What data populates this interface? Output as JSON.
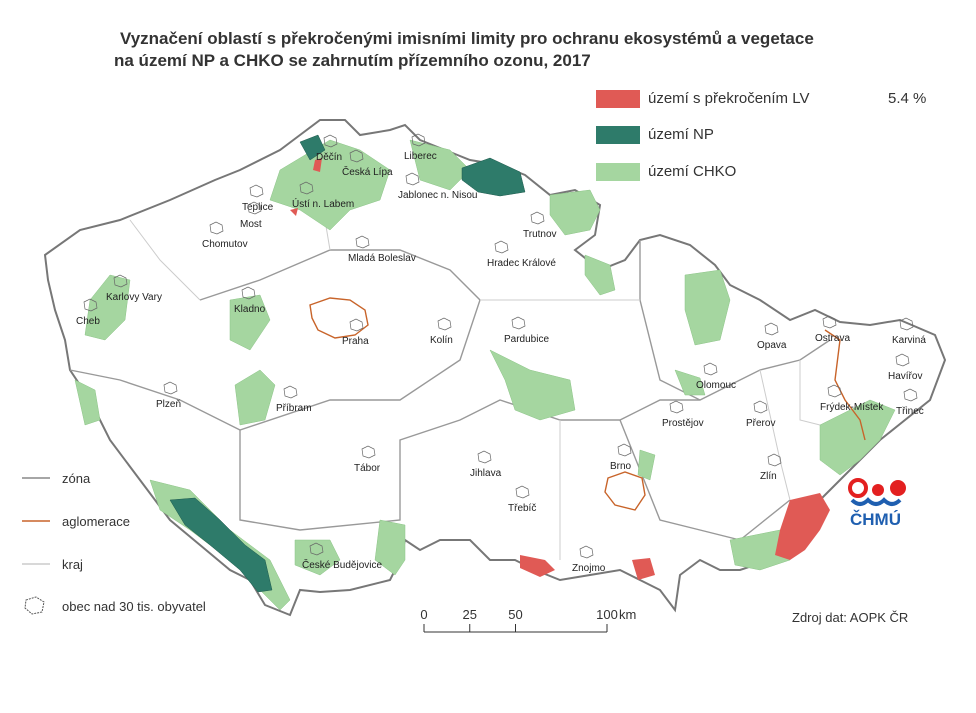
{
  "title": [
    "Vyznačení oblastí s překročenými imisními limity pro ochranu ekosystémů a vegetace",
    "na území NP a CHKO se zahrnutím přízemního ozonu, 2017"
  ],
  "legend": [
    {
      "label": "území s překročením LV",
      "value": "5.4 %"
    },
    {
      "label": "území NP"
    },
    {
      "label": "území CHKO"
    }
  ],
  "boundary_legend": [
    "zóna",
    "aglomerace",
    "kraj",
    "obec nad 30 tis. obyvatel"
  ],
  "cities": [
    "Děčín",
    "Česká Lípa",
    "Liberec",
    "Jablonec n. Nisou",
    "Teplice",
    "Ústí n. Labem",
    "Most",
    "Chomutov",
    "Mladá Boleslav",
    "Trutnov",
    "Hradec Králové",
    "Karlovy Vary",
    "Cheb",
    "Kladno",
    "Praha",
    "Kolín",
    "Pardubice",
    "Opava",
    "Ostrava",
    "Karviná",
    "Havířov",
    "Olomouc",
    "Frýdek-Místek",
    "Třinec",
    "Plzeň",
    "Příbram",
    "Prostějov",
    "Přerov",
    "Tábor",
    "Jihlava",
    "Brno",
    "Zlín",
    "Třebíč",
    "České Budějovice",
    "Znojmo"
  ],
  "scale": {
    "ticks": [
      0,
      25,
      50,
      100
    ],
    "unit": "km"
  },
  "source": "Zdroj dat: AOPK ČR",
  "logo": "ČHMÚ"
}
